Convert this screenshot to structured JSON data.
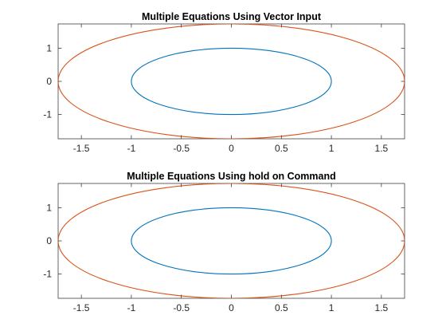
{
  "chart_data": [
    {
      "type": "line",
      "title": "Multiple Equations Using Vector Input",
      "xlabel": "",
      "ylabel": "",
      "xlim": [
        -1.732,
        1.732
      ],
      "ylim": [
        -1.732,
        1.732
      ],
      "xticks": [
        -1.5,
        -1,
        -0.5,
        0,
        0.5,
        1,
        1.5
      ],
      "xtick_labels": [
        "-1.5",
        "-1",
        "-0.5",
        "0",
        "0.5",
        "1",
        "1.5"
      ],
      "yticks": [
        1,
        0,
        -1
      ],
      "ytick_labels": [
        "1",
        "0",
        "-1"
      ],
      "grid": false,
      "series": [
        {
          "kind": "ellipse",
          "equation": "x^2 + y^2 = 1",
          "center": [
            0,
            0
          ],
          "rx": 1,
          "ry": 1,
          "color": "#0072bd"
        },
        {
          "kind": "ellipse",
          "equation": "x^2 + y^2 = 3",
          "center": [
            0,
            0
          ],
          "rx": 1.732,
          "ry": 1.732,
          "color": "#d95319"
        }
      ]
    },
    {
      "type": "line",
      "title": "Multiple Equations Using hold on Command",
      "xlabel": "",
      "ylabel": "",
      "xlim": [
        -1.732,
        1.732
      ],
      "ylim": [
        -1.732,
        1.732
      ],
      "xticks": [
        -1.5,
        -1,
        -0.5,
        0,
        0.5,
        1,
        1.5
      ],
      "xtick_labels": [
        "-1.5",
        "-1",
        "-0.5",
        "0",
        "0.5",
        "1",
        "1.5"
      ],
      "yticks": [
        1,
        0,
        -1
      ],
      "ytick_labels": [
        "1",
        "0",
        "-1"
      ],
      "grid": false,
      "series": [
        {
          "kind": "ellipse",
          "equation": "x^2 + y^2 = 1",
          "center": [
            0,
            0
          ],
          "rx": 1,
          "ry": 1,
          "color": "#0072bd"
        },
        {
          "kind": "ellipse",
          "equation": "x^2 + y^2 = 3",
          "center": [
            0,
            0
          ],
          "rx": 1.732,
          "ry": 1.732,
          "color": "#d95319"
        }
      ]
    }
  ]
}
